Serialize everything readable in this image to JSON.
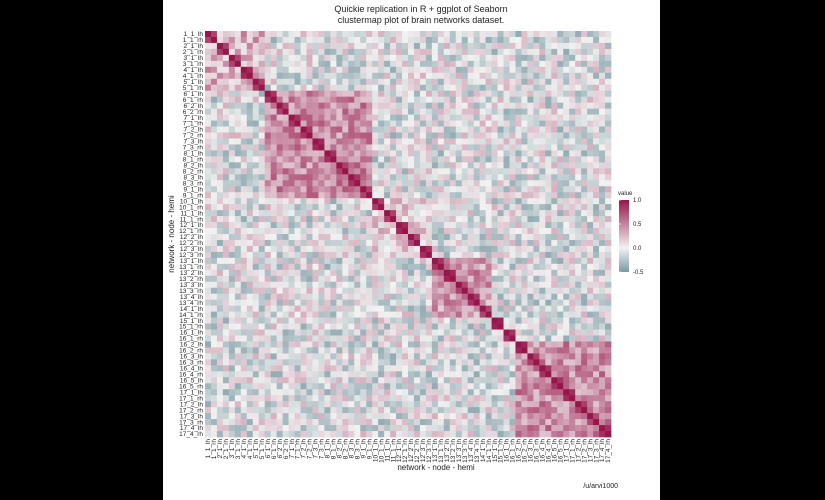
{
  "title": "Quickie replication in R + ggplot of Seaborn",
  "subtitle": "clustermap plot of brain networks dataset.",
  "caption": "/u/arvi1000",
  "colors": {
    "low": "#7b9ba3",
    "mid": "#f2f2f2",
    "high": "#97154a",
    "page_bg": "#000000",
    "panel_bg": "#ffffff"
  },
  "chart_data": {
    "type": "heatmap",
    "xlabel": "network - node - hemi",
    "ylabel": "network - node - hemi",
    "labels": [
      "1_1_lh",
      "1_1_rh",
      "2_1_lh",
      "2_1_rh",
      "3_1_lh",
      "3_1_rh",
      "4_1_lh",
      "4_1_rh",
      "5_1_lh",
      "5_1_rh",
      "6_1_lh",
      "6_1_rh",
      "6_2_lh",
      "6_2_rh",
      "7_1_lh",
      "7_1_rh",
      "7_2_lh",
      "7_2_rh",
      "7_3_lh",
      "7_3_rh",
      "8_1_lh",
      "8_1_rh",
      "8_2_lh",
      "8_2_rh",
      "8_3_lh",
      "8_3_rh",
      "9_1_lh",
      "9_1_rh",
      "10_1_lh",
      "10_1_rh",
      "11_1_lh",
      "11_1_rh",
      "12_1_lh",
      "12_1_rh",
      "12_2_lh",
      "12_2_rh",
      "12_3_lh",
      "12_3_rh",
      "13_1_lh",
      "13_1_rh",
      "13_2_lh",
      "13_2_rh",
      "13_3_lh",
      "13_3_rh",
      "13_4_lh",
      "13_4_rh",
      "14_1_lh",
      "14_1_rh",
      "15_1_lh",
      "15_1_rh",
      "16_1_lh",
      "16_1_rh",
      "16_2_lh",
      "16_2_rh",
      "16_3_lh",
      "16_3_rh",
      "16_4_lh",
      "16_4_rh",
      "16_5_lh",
      "16_5_rh",
      "17_1_lh",
      "17_1_rh",
      "17_2_lh",
      "17_2_rh",
      "17_3_lh",
      "17_3_rh",
      "17_4_lh",
      "17_4_rh"
    ],
    "legend": {
      "title": "value",
      "ticks": [
        "1.0",
        "0.5",
        "0.0",
        "-0.5"
      ],
      "min": -0.5,
      "max": 1.0
    },
    "blocks": [
      {
        "from": 0,
        "to": 9,
        "level": 0.3
      },
      {
        "from": 10,
        "to": 27,
        "level": 0.45
      },
      {
        "from": 28,
        "to": 37,
        "level": 0.15
      },
      {
        "from": 38,
        "to": 47,
        "level": 0.4
      },
      {
        "from": 48,
        "to": 51,
        "level": 0.1
      },
      {
        "from": 52,
        "to": 67,
        "level": 0.45
      }
    ],
    "diagonal": 1.0,
    "background_level": -0.05
  }
}
